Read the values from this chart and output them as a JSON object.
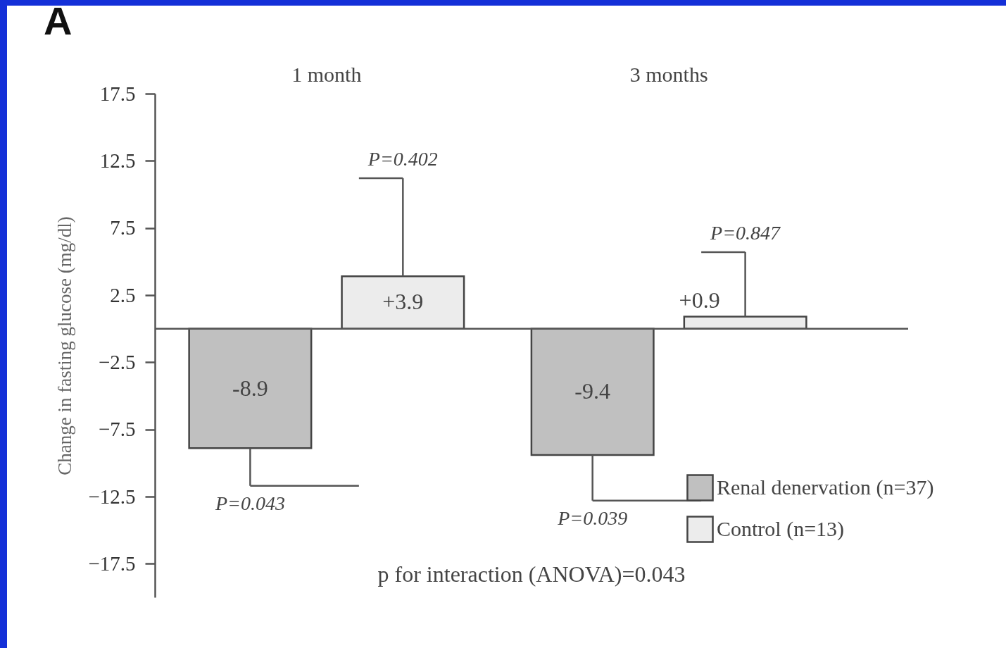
{
  "chart_data": {
    "type": "bar",
    "title": "A",
    "ylabel": "Change in fasting glucose (mg/dl)",
    "categories": [
      "1 month",
      "3 months"
    ],
    "series": [
      {
        "name": "Renal denervation (n=37)",
        "color": "#c0c0c0",
        "values": [
          -8.9,
          -9.4
        ],
        "errors": [
          [
            -11.7,
            -8.9
          ],
          [
            -12.8,
            -9.4
          ]
        ],
        "value_labels": [
          "-8.9",
          "-9.4"
        ]
      },
      {
        "name": "Control (n=13)",
        "color": "#ececec",
        "values": [
          3.9,
          0.9
        ],
        "errors": [
          [
            3.9,
            11.2
          ],
          [
            0.9,
            5.7
          ]
        ],
        "value_labels": [
          "+3.9",
          "+0.9"
        ]
      }
    ],
    "ylim": [
      -20,
      17.5
    ],
    "yticks": [
      -17.5,
      -12.5,
      -7.5,
      -2.5,
      2.5,
      7.5,
      12.5,
      17.5
    ],
    "ref_lines": [
      {
        "axis": "y",
        "value": 0
      }
    ],
    "legend": "bottom right",
    "grid": false,
    "annotations": [
      "P=0.043",
      "P=0.402",
      "P=0.039",
      "P=0.847",
      "p for interaction (ANOVA)=0.043"
    ]
  }
}
